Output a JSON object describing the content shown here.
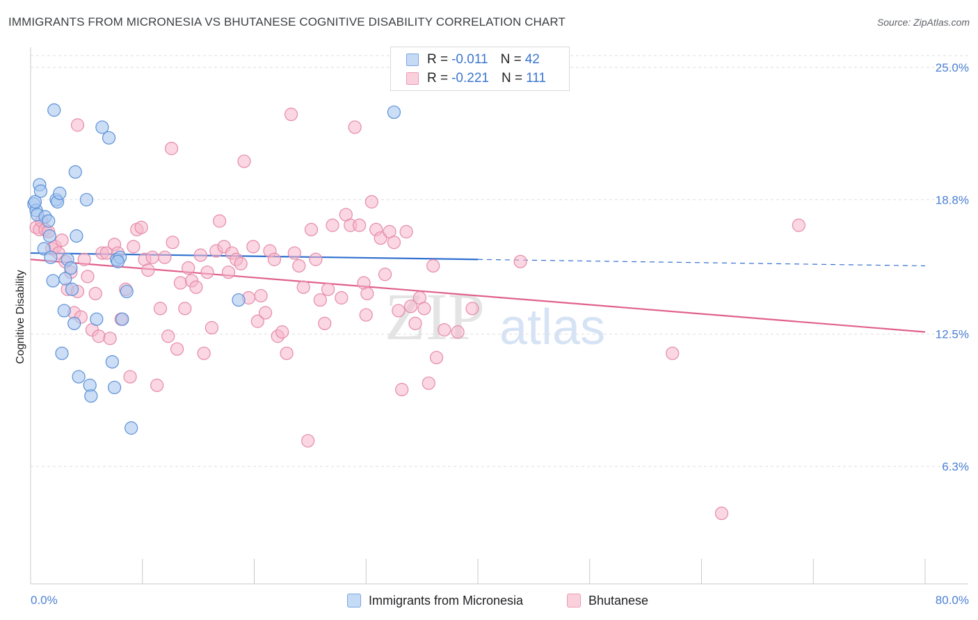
{
  "header": {
    "title": "IMMIGRANTS FROM MICRONESIA VS BHUTANESE COGNITIVE DISABILITY CORRELATION CHART",
    "source": "Source: ZipAtlas.com"
  },
  "watermark": {
    "part1": "ZIP",
    "part2": "atlas"
  },
  "legend": {
    "rows": [
      {
        "r_label": "R =",
        "r_value": "-0.011",
        "n_label": "N =",
        "n_value": "42",
        "color": "#a9c8f0"
      },
      {
        "r_label": "R =",
        "r_value": "-0.221",
        "n_label": "N =",
        "n_value": "111",
        "color": "#f5b7cb"
      }
    ]
  },
  "bottom_legend": {
    "items": [
      {
        "label": "Immigrants from Micronesia",
        "color": "#a9c8f0"
      },
      {
        "label": "Bhutanese",
        "color": "#f5b7cb"
      }
    ]
  },
  "chart_data": {
    "type": "scatter",
    "title": "IMMIGRANTS FROM MICRONESIA VS BHUTANESE COGNITIVE DISABILITY CORRELATION CHART",
    "xlabel": "",
    "ylabel": "Cognitive Disability",
    "xlim": [
      0,
      80
    ],
    "ylim": [
      0,
      26
    ],
    "x_tick_labels": [
      "0.0%",
      "80.0%"
    ],
    "y_ticks": [
      6.3,
      12.5,
      18.8,
      25.0
    ],
    "y_tick_labels": [
      "6.3%",
      "12.5%",
      "18.8%",
      "25.0%"
    ],
    "grid": true,
    "legend_position": "top-center",
    "colors": {
      "micronesia_fill": "#a9c8f0",
      "micronesia_stroke": "#5b8fd6",
      "micronesia_line": "#2f6fd0",
      "bhutanese_fill": "#f5b7cb",
      "bhutanese_stroke": "#e58aa8",
      "bhutanese_line": "#e0608c"
    },
    "series": [
      {
        "name": "Immigrants from Micronesia",
        "trend": {
          "x0": 0,
          "y0": 16.3,
          "x1": 40,
          "y1": 16.0,
          "dashed_to_x": 80,
          "dashed_y": 15.7
        },
        "points": [
          [
            0.3,
            18.6
          ],
          [
            0.5,
            18.3
          ],
          [
            0.6,
            18.1
          ],
          [
            0.8,
            19.5
          ],
          [
            0.9,
            19.2
          ],
          [
            1.3,
            18.0
          ],
          [
            1.6,
            17.8
          ],
          [
            1.2,
            16.5
          ],
          [
            1.7,
            17.1
          ],
          [
            1.8,
            16.1
          ],
          [
            2.0,
            15.0
          ],
          [
            2.1,
            23.0
          ],
          [
            2.3,
            18.8
          ],
          [
            2.4,
            18.7
          ],
          [
            2.6,
            19.1
          ],
          [
            2.8,
            11.6
          ],
          [
            3.0,
            13.6
          ],
          [
            3.1,
            15.1
          ],
          [
            3.3,
            16.0
          ],
          [
            3.6,
            15.6
          ],
          [
            3.7,
            14.6
          ],
          [
            3.9,
            13.0
          ],
          [
            4.1,
            17.1
          ],
          [
            4.3,
            10.5
          ],
          [
            5.0,
            18.8
          ],
          [
            5.3,
            10.1
          ],
          [
            5.4,
            9.6
          ],
          [
            4.0,
            20.1
          ],
          [
            5.9,
            13.2
          ],
          [
            6.4,
            22.2
          ],
          [
            7.0,
            21.7
          ],
          [
            7.3,
            11.2
          ],
          [
            7.5,
            10.0
          ],
          [
            7.7,
            16.0
          ],
          [
            8.0,
            16.1
          ],
          [
            8.2,
            13.2
          ],
          [
            8.6,
            14.5
          ],
          [
            9.0,
            8.1
          ],
          [
            7.8,
            15.9
          ],
          [
            18.6,
            14.1
          ],
          [
            32.5,
            22.9
          ],
          [
            0.4,
            18.7
          ]
        ]
      },
      {
        "name": "Bhutanese",
        "trend": {
          "x0": 0,
          "y0": 16.0,
          "x1": 80,
          "y1": 12.6
        },
        "points": [
          [
            0.5,
            17.5
          ],
          [
            0.8,
            17.4
          ],
          [
            1.0,
            17.8
          ],
          [
            1.3,
            17.4
          ],
          [
            1.6,
            17.3
          ],
          [
            1.9,
            16.5
          ],
          [
            2.2,
            16.6
          ],
          [
            2.5,
            16.3
          ],
          [
            2.8,
            16.9
          ],
          [
            3.1,
            15.9
          ],
          [
            3.3,
            14.6
          ],
          [
            3.6,
            15.4
          ],
          [
            3.9,
            13.5
          ],
          [
            4.2,
            14.5
          ],
          [
            4.5,
            13.3
          ],
          [
            4.8,
            16.0
          ],
          [
            5.1,
            15.2
          ],
          [
            5.5,
            12.7
          ],
          [
            5.8,
            14.4
          ],
          [
            6.1,
            12.4
          ],
          [
            6.4,
            16.3
          ],
          [
            6.8,
            16.3
          ],
          [
            7.1,
            12.3
          ],
          [
            7.5,
            16.7
          ],
          [
            7.8,
            16.3
          ],
          [
            8.1,
            13.2
          ],
          [
            8.5,
            14.6
          ],
          [
            8.9,
            10.5
          ],
          [
            9.2,
            16.6
          ],
          [
            9.5,
            17.4
          ],
          [
            9.9,
            17.5
          ],
          [
            10.2,
            16.0
          ],
          [
            10.5,
            15.5
          ],
          [
            10.9,
            16.1
          ],
          [
            11.3,
            10.1
          ],
          [
            11.6,
            13.7
          ],
          [
            12.0,
            16.1
          ],
          [
            12.3,
            12.4
          ],
          [
            12.7,
            16.8
          ],
          [
            13.1,
            11.8
          ],
          [
            13.4,
            14.9
          ],
          [
            13.8,
            13.7
          ],
          [
            14.1,
            15.6
          ],
          [
            14.4,
            15.0
          ],
          [
            14.8,
            14.7
          ],
          [
            15.2,
            16.2
          ],
          [
            15.5,
            11.6
          ],
          [
            15.8,
            15.4
          ],
          [
            16.2,
            12.8
          ],
          [
            16.6,
            16.4
          ],
          [
            16.9,
            17.8
          ],
          [
            17.3,
            16.6
          ],
          [
            17.7,
            15.4
          ],
          [
            18.0,
            16.3
          ],
          [
            18.4,
            16.0
          ],
          [
            18.8,
            15.8
          ],
          [
            19.1,
            20.6
          ],
          [
            19.5,
            14.2
          ],
          [
            19.9,
            16.6
          ],
          [
            20.3,
            13.1
          ],
          [
            20.6,
            14.3
          ],
          [
            21.0,
            13.5
          ],
          [
            21.4,
            16.4
          ],
          [
            21.8,
            16.0
          ],
          [
            22.1,
            12.4
          ],
          [
            22.5,
            12.6
          ],
          [
            22.9,
            11.6
          ],
          [
            23.3,
            22.8
          ],
          [
            23.6,
            16.3
          ],
          [
            24.0,
            15.7
          ],
          [
            24.4,
            14.7
          ],
          [
            24.8,
            7.5
          ],
          [
            25.1,
            17.4
          ],
          [
            25.5,
            16.0
          ],
          [
            25.9,
            14.1
          ],
          [
            26.3,
            13.0
          ],
          [
            26.6,
            14.6
          ],
          [
            27.0,
            17.6
          ],
          [
            27.8,
            14.2
          ],
          [
            28.2,
            18.1
          ],
          [
            28.6,
            17.6
          ],
          [
            29.0,
            22.2
          ],
          [
            29.4,
            17.6
          ],
          [
            29.8,
            14.9
          ],
          [
            30.1,
            14.4
          ],
          [
            30.5,
            18.7
          ],
          [
            30.9,
            17.4
          ],
          [
            31.3,
            17.0
          ],
          [
            31.7,
            15.3
          ],
          [
            32.1,
            17.3
          ],
          [
            32.5,
            16.8
          ],
          [
            32.9,
            13.6
          ],
          [
            33.2,
            9.9
          ],
          [
            33.6,
            17.3
          ],
          [
            34.0,
            13.8
          ],
          [
            34.4,
            13.0
          ],
          [
            34.8,
            14.2
          ],
          [
            35.2,
            13.7
          ],
          [
            35.6,
            10.2
          ],
          [
            36.0,
            15.7
          ],
          [
            36.3,
            11.4
          ],
          [
            37.0,
            12.7
          ],
          [
            38.2,
            12.6
          ],
          [
            39.5,
            13.7
          ],
          [
            43.8,
            15.9
          ],
          [
            57.4,
            11.6
          ],
          [
            61.8,
            4.1
          ],
          [
            68.7,
            17.6
          ],
          [
            12.6,
            21.2
          ],
          [
            4.2,
            22.3
          ],
          [
            30.0,
            13.4
          ]
        ]
      }
    ]
  }
}
